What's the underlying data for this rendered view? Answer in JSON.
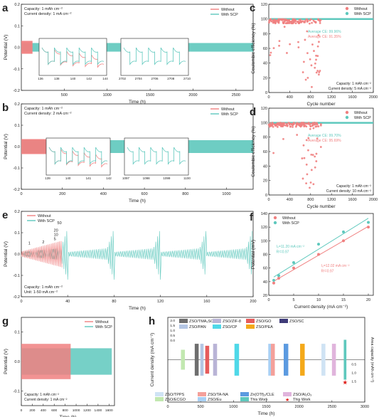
{
  "colors": {
    "without": "#f08080",
    "with": "#5ec8bd",
    "axis": "#222222"
  },
  "chart_data": [
    {
      "id": "a",
      "type": "line",
      "panel_letter": "a",
      "annotations": [
        "Capacity: 1 mAh cm⁻²",
        "Current density: 1 mA cm⁻²"
      ],
      "xlabel": "Time (h)",
      "ylabel": "Potential (V)",
      "xlim": [
        0,
        2700
      ],
      "ylim": [
        -0.2,
        0.2
      ],
      "xticks": [
        "500",
        "1000",
        "1500",
        "2000",
        "2500"
      ],
      "yticks": [
        "0.2",
        "0.1",
        "0.0",
        "-0.1",
        "-0.2"
      ],
      "series": [
        {
          "name": "Without",
          "x_range": [
            0,
            130
          ],
          "amplitude_v": 0.03
        },
        {
          "name": "With SCP",
          "x_range": [
            0,
            2700
          ],
          "amplitude_v": 0.02
        }
      ],
      "insets": [
        {
          "xticks": [
            "136",
            "138",
            "140",
            "142",
            "144"
          ]
        },
        {
          "xticks": [
            "2702",
            "2704",
            "2706",
            "2708",
            "2710"
          ]
        }
      ]
    },
    {
      "id": "b",
      "type": "line",
      "panel_letter": "b",
      "annotations": [
        "Capacity: 1 mAh cm⁻²",
        "Current density: 2 mA cm⁻²"
      ],
      "xlabel": "Time (h)",
      "ylabel": "Potential (V)",
      "xlim": [
        0,
        1130
      ],
      "ylim": [
        -0.2,
        0.2
      ],
      "xticks": [
        "0",
        "200",
        "400",
        "600",
        "800",
        "1000"
      ],
      "yticks": [
        "0.2",
        "0.1",
        "0.0",
        "-0.1",
        "-0.2"
      ],
      "series": [
        {
          "name": "Without",
          "x_range": [
            0,
            140
          ],
          "amplitude_v": 0.035
        },
        {
          "name": "With SCP",
          "x_range": [
            0,
            1130
          ],
          "amplitude_v": 0.03
        }
      ],
      "insets": [
        {
          "xticks": [
            "139",
            "140",
            "141",
            "142"
          ]
        },
        {
          "xticks": [
            "1097",
            "1098",
            "1099",
            "1100"
          ]
        }
      ]
    },
    {
      "id": "c",
      "type": "scatter",
      "panel_letter": "c",
      "annotations": [
        "Average CE: 99.96%",
        "Average CE: 91.35%",
        "Capacity: 1 mAh cm⁻²",
        "Current density: 5 mA cm⁻²"
      ],
      "xlabel": "Cycle number",
      "ylabel": "Coulombic efficiency (%)",
      "xlim": [
        0,
        2000
      ],
      "ylim": [
        0,
        120
      ],
      "xticks": [
        "0",
        "400",
        "800",
        "1200",
        "1600",
        "2000"
      ],
      "yticks": [
        "0",
        "20",
        "40",
        "60",
        "80",
        "100",
        "120"
      ],
      "series": [
        {
          "name": "Without",
          "average_ce": 91.35,
          "x_range": [
            0,
            1000
          ]
        },
        {
          "name": "With SCP",
          "average_ce": 99.96,
          "x_range": [
            0,
            2000
          ]
        }
      ]
    },
    {
      "id": "d",
      "type": "scatter",
      "panel_letter": "d",
      "annotations": [
        "Average CE: 99.70%",
        "Average CE: 95.69%",
        "Capacity: 1 mAh cm⁻²",
        "Current density: 10 mA cm⁻²"
      ],
      "xlabel": "Cycle number",
      "ylabel": "Coulombic efficiency (%)",
      "xlim": [
        0,
        2000
      ],
      "ylim": [
        0,
        120
      ],
      "xticks": [
        "0",
        "400",
        "800",
        "1200",
        "1600",
        "2000"
      ],
      "yticks": [
        "0",
        "20",
        "40",
        "60",
        "80",
        "100",
        "120"
      ],
      "series": [
        {
          "name": "Without",
          "average_ce": 95.69,
          "x_range": [
            0,
            1000
          ]
        },
        {
          "name": "With SCP",
          "average_ce": 99.7,
          "x_range": [
            0,
            2000
          ]
        }
      ]
    },
    {
      "id": "e",
      "type": "line",
      "panel_letter": "e",
      "annotations": [
        "Capacity: 1 mAh cm⁻²",
        "Unit: 1-50 mA cm⁻²"
      ],
      "step_labels": [
        "1",
        "2",
        "5",
        "10",
        "20",
        "50"
      ],
      "xlabel": "Time (h)",
      "ylabel": "Potential (V)",
      "xlim": [
        0,
        200
      ],
      "ylim": [
        -0.2,
        0.2
      ],
      "xticks": [
        "0",
        "40",
        "80",
        "120",
        "160",
        "200"
      ],
      "yticks": [
        "0.2",
        "0.1",
        "0.0",
        "-0.1",
        "-0.2"
      ],
      "series": [
        {
          "name": "Without",
          "x_range": [
            0,
            35
          ]
        },
        {
          "name": "With SCP",
          "x_range": [
            0,
            200
          ]
        }
      ]
    },
    {
      "id": "f",
      "type": "scatter",
      "panel_letter": "f",
      "annotations": [
        "I₀=11.20 mA cm⁻²",
        "R²=0.97",
        "I₀=12.02 mA cm⁻²",
        "R²=0.97"
      ],
      "xlabel": "Current density (mA cm⁻²)",
      "ylabel": "Potential (mV)",
      "xlim": [
        0,
        21
      ],
      "ylim": [
        20,
        140
      ],
      "xticks": [
        "0",
        "5",
        "10",
        "15",
        "20"
      ],
      "yticks": [
        "20",
        "40",
        "60",
        "80",
        "100",
        "120",
        "140"
      ],
      "series": [
        {
          "name": "Without",
          "x": [
            1,
            2,
            5,
            10,
            15,
            20
          ],
          "y": [
            38,
            45,
            60,
            80,
            100,
            120
          ]
        },
        {
          "name": "With SCP",
          "x": [
            1,
            2,
            5,
            10,
            15,
            20
          ],
          "y": [
            42,
            49,
            68,
            95,
            113,
            127
          ]
        }
      ]
    },
    {
      "id": "g",
      "type": "line",
      "panel_letter": "g",
      "annotations": [
        "Capacity: 1 mAh cm⁻²",
        "Current density: 1 mA cm⁻²"
      ],
      "xlabel": "Time (h)",
      "ylabel": "Potential (V)",
      "xlim": [
        0,
        1700
      ],
      "ylim": [
        -0.15,
        0.15
      ],
      "xticks": [
        "0",
        "200",
        "400",
        "600",
        "800",
        "1000",
        "1200",
        "1400",
        "1600"
      ],
      "yticks": [
        "0.1",
        "0.0",
        "-0.1"
      ],
      "series": [
        {
          "name": "Without",
          "x_range": [
            0,
            900
          ],
          "amplitude_v": 0.06
        },
        {
          "name": "With SCP",
          "x_range": [
            0,
            1650
          ],
          "amplitude_v": 0.045
        }
      ]
    },
    {
      "id": "h",
      "type": "bar",
      "panel_letter": "h",
      "xlabel": "Time (h)",
      "ylabel": "Current density (mA cm⁻²)",
      "y2label": "Area capacity (mAh cm⁻²)",
      "xlim": [
        0,
        3000
      ],
      "xticks": [
        "0",
        "500",
        "1000",
        "1500",
        "2000",
        "2500",
        "3000"
      ],
      "yticks": [
        "2.0",
        "1.5",
        "1.0",
        "0.5",
        "0.0"
      ],
      "y2ticks": [
        "0.5",
        "1.0",
        "1.5"
      ],
      "legend": [
        {
          "name": "ZSO/TMA₂SO₄",
          "color": "#6e6e6e"
        },
        {
          "name": "ZSO/ZIF-8",
          "color": "#b9b4d6"
        },
        {
          "name": "ZSO/GO",
          "color": "#e65c5c"
        },
        {
          "name": "ZSO/SC",
          "color": "#3e3a78"
        },
        {
          "name": "ZSO/PAN",
          "color": "#b4c6e4"
        },
        {
          "name": "ZSO/CP",
          "color": "#4fd8e8"
        },
        {
          "name": "ZSO/PEA",
          "color": "#f4a91a"
        },
        {
          "name": "ZSO/TPPS",
          "color": "#cfe3f4"
        },
        {
          "name": "ZSO/TA-NA",
          "color": "#f4a09a"
        },
        {
          "name": "Zn(OTf)₂/CLE",
          "color": "#5b9ae0"
        },
        {
          "name": "ZSO/Al₂O₃",
          "color": "#e0b4dc"
        },
        {
          "name": "ZSO/ECGO",
          "color": "#c2e8b0"
        },
        {
          "name": "ZSO/Eu",
          "color": "#a9d0f4"
        },
        {
          "name": "This Work",
          "color": "#5ec8bd"
        },
        {
          "name": "This Work",
          "color": "#e0201c",
          "marker": "star"
        }
      ],
      "bars": [
        {
          "label": "ZSO/ECGO",
          "x": 230,
          "current_density": 0.5,
          "width_h": 60
        },
        {
          "label": "ZSO/TMA₂SO₄",
          "x": 440,
          "current_density": 0.8,
          "width_h": 60
        },
        {
          "label": "ZSO/PAN",
          "x": 520,
          "current_density": 0.8,
          "width_h": 50
        },
        {
          "label": "ZSO/GO",
          "x": 600,
          "current_density": 0.7,
          "width_h": 60
        },
        {
          "label": "ZSO/ZIF-8",
          "x": 720,
          "current_density": 0.8,
          "width_h": 60
        },
        {
          "label": "ZSO/CP",
          "x": 1050,
          "current_density": 0.8,
          "width_h": 70
        },
        {
          "label": "ZSO/Eu",
          "x": 1550,
          "current_density": 0.8,
          "width_h": 40
        },
        {
          "label": "ZSO/TA-NA",
          "x": 1600,
          "current_density": 0.8,
          "width_h": 60
        },
        {
          "label": "Zn(OTf)₂/CLE",
          "x": 1800,
          "current_density": 0.8,
          "width_h": 70
        },
        {
          "label": "ZSO/PEA",
          "x": 2050,
          "current_density": 0.8,
          "width_h": 70
        },
        {
          "label": "ZSO/TPPS",
          "x": 2370,
          "current_density": 0.8,
          "width_h": 60
        },
        {
          "label": "ZSO/Al₂O₃",
          "x": 2530,
          "current_density": 0.8,
          "width_h": 60
        },
        {
          "label": "This Work",
          "x": 2700,
          "current_density": 1.0,
          "width_h": 40
        }
      ]
    }
  ]
}
